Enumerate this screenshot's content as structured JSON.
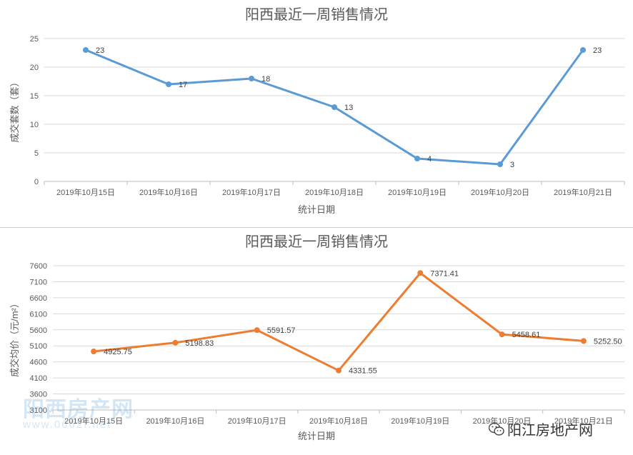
{
  "chart_data": [
    {
      "type": "line",
      "title": "阳西最近一周销售情况",
      "xlabel": "统计日期",
      "ylabel": "成交套数（套）",
      "categories": [
        "2019年10月15日",
        "2019年10月16日",
        "2019年10月17日",
        "2019年10月18日",
        "2019年10月19日",
        "2019年10月20日",
        "2019年10月21日"
      ],
      "series": [
        {
          "values": [
            23,
            17,
            18,
            13,
            4,
            3,
            23
          ],
          "labels": [
            "23",
            "17",
            "18",
            "13",
            "4",
            "3",
            "23"
          ]
        }
      ],
      "ylim": [
        0,
        25
      ],
      "yticks": [
        "0",
        "5",
        "10",
        "15",
        "20",
        "25"
      ],
      "grid": true,
      "line_color": "#5b9bd5"
    },
    {
      "type": "line",
      "title": "阳西最近一周销售情况",
      "xlabel": "统计日期",
      "ylabel": "成交均价（元/m²）",
      "categories": [
        "2019年10月15日",
        "2019年10月16日",
        "2019年10月17日",
        "2019年10月18日",
        "2019年10月19日",
        "2019年10月20日",
        "2019年10月21日"
      ],
      "series": [
        {
          "values": [
            4925.75,
            5198.83,
            5591.57,
            4331.55,
            7371.41,
            5458.61,
            5252.5
          ],
          "labels": [
            "4925.75",
            "5198.83",
            "5591.57",
            "4331.55",
            "7371.41",
            "5458.61",
            "5252.50"
          ]
        }
      ],
      "ylim": [
        3100,
        7600
      ],
      "yticks": [
        "3100",
        "3600",
        "4100",
        "4600",
        "5100",
        "5600",
        "6100",
        "6600",
        "7100",
        "7600"
      ],
      "grid": true,
      "line_color": "#ed7d31"
    }
  ],
  "watermarks": {
    "left_main": "阳西房产网",
    "left_sub": "www.0662f.net",
    "right_text": "阳江房地产网",
    "right_icon": "wechat-icon"
  }
}
